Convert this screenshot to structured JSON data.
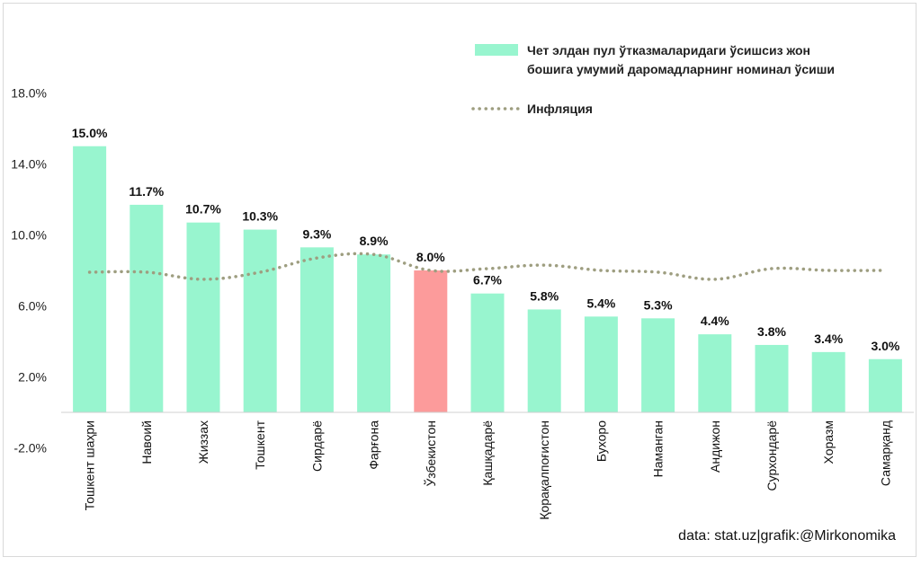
{
  "chart_data": {
    "type": "bar",
    "categories": [
      "Тошкент шаҳри",
      "Навоий",
      "Жиззах",
      "Тошкент",
      "Сирдарё",
      "Фарғона",
      "Ўзбекистон",
      "Қашқадарё",
      "Қорақалпоғистон",
      "Бухоро",
      "Наманган",
      "Андижон",
      "Сурхондарё",
      "Хоразм",
      "Самарқанд"
    ],
    "series": [
      {
        "name": "Чет элдан пул ўтказмаларидаги ўсишсиз жон бошига умумий даромадларнинг  номинал ўсиши",
        "values": [
          15.0,
          11.7,
          10.7,
          10.3,
          9.3,
          8.9,
          8.0,
          6.7,
          5.8,
          5.4,
          5.3,
          4.4,
          3.8,
          3.4,
          3.0
        ],
        "data_labels": [
          "15.0%",
          "11.7%",
          "10.7%",
          "10.3%",
          "9.3%",
          "8.9%",
          "8.0%",
          "6.7%",
          "5.8%",
          "5.4%",
          "5.3%",
          "4.4%",
          "3.8%",
          "3.4%",
          "3.0%"
        ],
        "color": "#98f5cf",
        "highlight_index": 6,
        "highlight_color": "#fc9b9b"
      },
      {
        "name": "Инфляция",
        "type": "line",
        "style": "dotted",
        "color": "#9e9e80",
        "values": [
          7.9,
          7.9,
          7.5,
          7.9,
          8.7,
          8.9,
          8.0,
          8.1,
          8.3,
          8.0,
          7.9,
          7.5,
          8.1,
          8.0,
          8.0
        ]
      }
    ],
    "y_tick_labels": [
      "-2.0%",
      "2.0%",
      "6.0%",
      "10.0%",
      "14.0%",
      "18.0%"
    ],
    "ylim": [
      -2,
      18
    ],
    "grid": false,
    "legend_position": "top-right",
    "source_note": "data: stat.uz|grafik:@Mirkonomika"
  }
}
